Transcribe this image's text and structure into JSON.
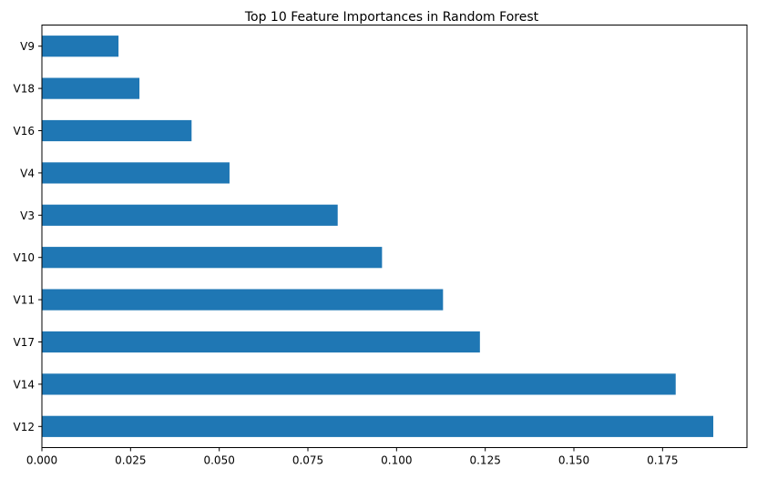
{
  "chart_data": {
    "type": "bar",
    "orientation": "horizontal",
    "title": "Top 10 Feature Importances in Random Forest",
    "xlabel": "",
    "ylabel": "",
    "categories": [
      "V12",
      "V14",
      "V17",
      "V11",
      "V10",
      "V3",
      "V4",
      "V16",
      "V18",
      "V9"
    ],
    "values": [
      0.1893,
      0.1787,
      0.1235,
      0.1131,
      0.0959,
      0.0834,
      0.0529,
      0.0422,
      0.0275,
      0.0216
    ],
    "xlim": [
      0,
      0.1988
    ],
    "xticks": [
      0.0,
      0.025,
      0.05,
      0.075,
      0.1,
      0.125,
      0.15,
      0.175
    ],
    "xtick_labels": [
      "0.000",
      "0.025",
      "0.050",
      "0.075",
      "0.100",
      "0.125",
      "0.150",
      "0.175"
    ],
    "bar_color": "#1f77b4",
    "grid": false,
    "legend": "none"
  }
}
